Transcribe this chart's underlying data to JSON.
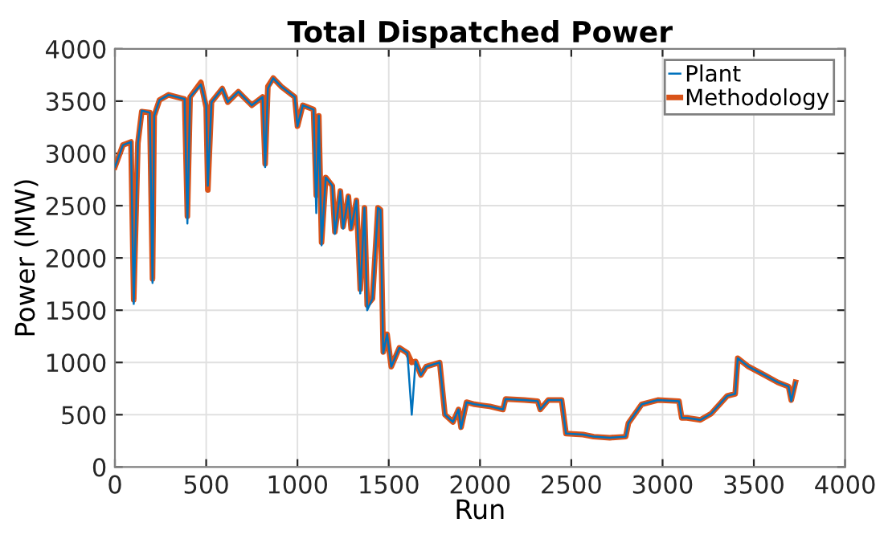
{
  "chart_data": {
    "type": "line",
    "title": "Total Dispatched Power",
    "xlabel": "Run",
    "ylabel": "Power (MW)",
    "xlim": [
      0,
      4000
    ],
    "ylim": [
      0,
      4000
    ],
    "xticks": [
      0,
      500,
      1000,
      1500,
      2000,
      2500,
      3000,
      3500,
      4000
    ],
    "yticks": [
      0,
      500,
      1000,
      1500,
      2000,
      2500,
      3000,
      3500,
      4000
    ],
    "grid": true,
    "legend": "top right",
    "line_style": "solid",
    "series": [
      {
        "name": "Plant",
        "color": "#0072bd",
        "x": [
          0,
          44,
          88,
          103,
          126,
          147,
          191,
          206,
          215,
          244,
          294,
          382,
          397,
          412,
          471,
          500,
          509,
          529,
          588,
          618,
          676,
          750,
          809,
          823,
          838,
          867,
          911,
          985,
          1000,
          1029,
          1088,
          1103,
          1117,
          1132,
          1155,
          1191,
          1205,
          1235,
          1250,
          1279,
          1294,
          1323,
          1344,
          1367,
          1382,
          1411,
          1441,
          1455,
          1470,
          1491,
          1514,
          1558,
          1602,
          1626,
          1647,
          1676,
          1705,
          1779,
          1808,
          1852,
          1882,
          1896,
          1926,
          1970,
          2009,
          2053,
          2126,
          2140,
          2243,
          2316,
          2330,
          2374,
          2447,
          2471,
          2564,
          2623,
          2711,
          2798,
          2813,
          2886,
          2974,
          3090,
          3105,
          3134,
          3207,
          3266,
          3354,
          3398,
          3412,
          3471,
          3558,
          3631,
          3690,
          3705,
          3728
        ],
        "values": [
          2870,
          3080,
          3110,
          1560,
          3100,
          3410,
          3390,
          1760,
          3360,
          3510,
          3560,
          3520,
          2330,
          3540,
          3660,
          3460,
          2690,
          3490,
          3620,
          3490,
          3590,
          3460,
          3540,
          2870,
          3620,
          3720,
          3640,
          3540,
          3260,
          3460,
          3420,
          2430,
          3360,
          2120,
          2770,
          2690,
          2230,
          2640,
          2280,
          2590,
          2280,
          2550,
          1660,
          2480,
          1500,
          1610,
          2480,
          2460,
          1090,
          1270,
          960,
          1140,
          1090,
          500,
          1010,
          880,
          960,
          1000,
          500,
          430,
          550,
          370,
          620,
          600,
          590,
          580,
          550,
          650,
          640,
          630,
          550,
          640,
          640,
          320,
          310,
          290,
          280,
          290,
          420,
          600,
          640,
          630,
          470,
          470,
          450,
          510,
          680,
          700,
          1040,
          960,
          880,
          810,
          770,
          630,
          810
        ]
      },
      {
        "name": "Methodology",
        "color": "#d95319",
        "x": [
          0,
          44,
          88,
          103,
          126,
          147,
          191,
          206,
          215,
          244,
          294,
          382,
          397,
          412,
          471,
          500,
          509,
          529,
          588,
          618,
          676,
          750,
          809,
          823,
          838,
          867,
          911,
          985,
          1000,
          1029,
          1088,
          1103,
          1117,
          1132,
          1155,
          1191,
          1205,
          1235,
          1250,
          1279,
          1294,
          1323,
          1344,
          1367,
          1382,
          1411,
          1441,
          1455,
          1470,
          1491,
          1514,
          1558,
          1602,
          1626,
          1647,
          1676,
          1705,
          1779,
          1808,
          1852,
          1882,
          1896,
          1926,
          1970,
          2009,
          2053,
          2126,
          2140,
          2243,
          2316,
          2330,
          2374,
          2447,
          2471,
          2564,
          2623,
          2711,
          2798,
          2813,
          2886,
          2974,
          3090,
          3105,
          3134,
          3207,
          3266,
          3354,
          3398,
          3412,
          3471,
          3558,
          3631,
          3690,
          3705,
          3728
        ],
        "values": [
          2870,
          3080,
          3110,
          1600,
          3100,
          3400,
          3390,
          1800,
          3360,
          3510,
          3560,
          3520,
          2400,
          3540,
          3680,
          3440,
          2650,
          3490,
          3620,
          3490,
          3590,
          3460,
          3540,
          2900,
          3640,
          3720,
          3640,
          3540,
          3260,
          3460,
          3420,
          2600,
          3360,
          2150,
          2770,
          2690,
          2250,
          2640,
          2300,
          2590,
          2280,
          2550,
          1700,
          2480,
          1550,
          1610,
          2480,
          2460,
          1100,
          1270,
          960,
          1140,
          1090,
          1000,
          1010,
          880,
          960,
          1000,
          500,
          430,
          550,
          380,
          620,
          600,
          590,
          580,
          550,
          650,
          640,
          630,
          550,
          640,
          640,
          320,
          310,
          290,
          280,
          290,
          420,
          600,
          640,
          630,
          470,
          470,
          450,
          510,
          680,
          700,
          1040,
          960,
          880,
          810,
          770,
          640,
          810
        ]
      }
    ]
  }
}
